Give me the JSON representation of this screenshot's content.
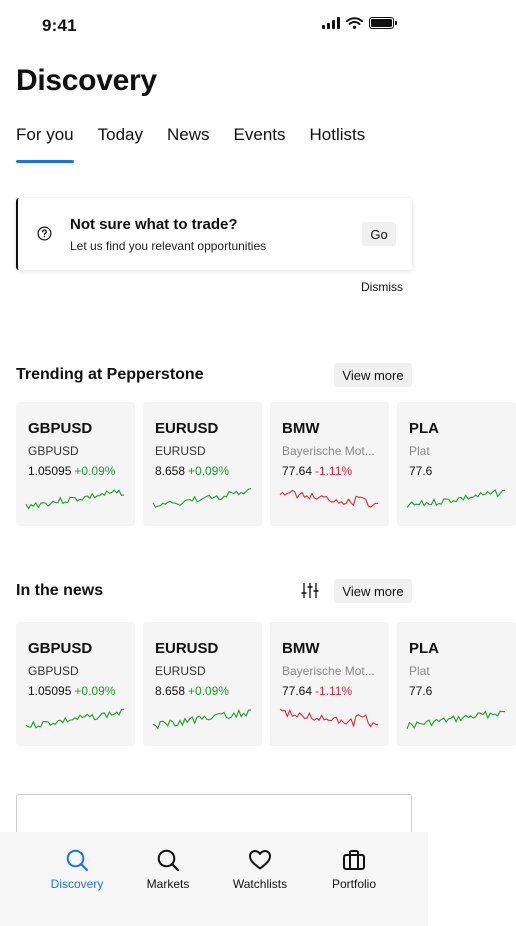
{
  "status_bar": {
    "time": "9:41"
  },
  "page_title": "Discovery",
  "tabs": [
    {
      "label": "For you",
      "active": true
    },
    {
      "label": "Today",
      "active": false
    },
    {
      "label": "News",
      "active": false
    },
    {
      "label": "Events",
      "active": false
    },
    {
      "label": "Hotlists",
      "active": false
    }
  ],
  "promo": {
    "title": "Not sure what to trade?",
    "subtitle": "Let us find you relevant opportunities",
    "go_label": "Go",
    "dismiss_label": "Dismiss"
  },
  "sections": [
    {
      "title": "Trending at Pepperstone",
      "view_more_label": "View more",
      "show_filter": false,
      "cards": [
        {
          "symbol": "GBPUSD",
          "name": "GBPUSD",
          "price": "1.05095",
          "change": "+0.09%",
          "direction": "up"
        },
        {
          "symbol": "EURUSD",
          "name": "EURUSD",
          "price": "8.658",
          "change": "+0.09%",
          "direction": "up"
        },
        {
          "symbol": "BMW",
          "name": "Bayerische Mot...",
          "price": "77.64",
          "change": "-1.11%",
          "direction": "down"
        },
        {
          "symbol": "PLA",
          "name": "Plat",
          "price": "77.6",
          "change": "",
          "direction": "up"
        }
      ]
    },
    {
      "title": "In the news",
      "view_more_label": "View more",
      "show_filter": true,
      "cards": [
        {
          "symbol": "GBPUSD",
          "name": "GBPUSD",
          "price": "1.05095",
          "change": "+0.09%",
          "direction": "up"
        },
        {
          "symbol": "EURUSD",
          "name": "EURUSD",
          "price": "8.658",
          "change": "+0.09%",
          "direction": "up"
        },
        {
          "symbol": "BMW",
          "name": "Bayerische Mot...",
          "price": "77.64",
          "change": "-1.11%",
          "direction": "down"
        },
        {
          "symbol": "PLA",
          "name": "Plat",
          "price": "77.6",
          "change": "",
          "direction": "up"
        }
      ]
    }
  ],
  "bottom_nav": [
    {
      "label": "Discovery",
      "icon": "search-icon",
      "active": true
    },
    {
      "label": "Markets",
      "icon": "search-icon",
      "active": false
    },
    {
      "label": "Watchlists",
      "icon": "heart-icon",
      "active": false
    },
    {
      "label": "Portfolio",
      "icon": "briefcase-icon",
      "active": false
    }
  ],
  "colors": {
    "accent": "#1a73e8",
    "positive": "#1f9d2c",
    "negative": "#e0263a"
  }
}
